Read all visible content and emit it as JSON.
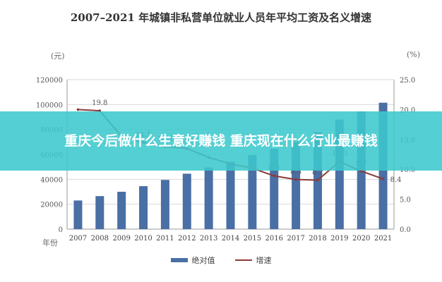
{
  "title": "2007–2021 年城镇非私营单位就业人员年平均工资及名义增速",
  "banner": "重庆今后做什么生意好赚钱 重庆现在什么行业最赚钱",
  "left_unit": "(元)",
  "right_unit": "(%)",
  "x_unit": "年份",
  "legend": {
    "bar_label": "绝对值",
    "line_label": "增速"
  },
  "colors": {
    "bar": "#4a6fa5",
    "line": "#8b3a3a",
    "banner": "#3cc8cd"
  },
  "chart_data": {
    "type": "bar",
    "title": "2007–2021 年城镇非私营单位就业人员年平均工资及名义增速",
    "categories": [
      "2007",
      "2008",
      "2009",
      "2010",
      "2011",
      "2012",
      "2013",
      "2014",
      "2015",
      "2016",
      "2017",
      "2018",
      "2019",
      "2020",
      "2021"
    ],
    "series": [
      {
        "name": "绝对值",
        "type": "bar",
        "axis": "left",
        "values": [
          23000,
          26500,
          30000,
          34500,
          39500,
          44500,
          49500,
          54000,
          59500,
          64500,
          70000,
          78000,
          88000,
          94500,
          101500
        ]
      },
      {
        "name": "增速",
        "type": "line",
        "axis": "right",
        "values": [
          20.0,
          19.8,
          15.5,
          14.5,
          13.8,
          13.5,
          12.0,
          10.9,
          10.2,
          8.9,
          8.3,
          8.2,
          11.3,
          9.7,
          8.4
        ],
        "labels": [
          "",
          "19.8",
          "",
          "14.5",
          "13.8",
          "13.5",
          "",
          "",
          "",
          "8.9",
          "8.3",
          "8.2",
          "11.3",
          "9.7",
          "8.4"
        ]
      }
    ],
    "ylim_left": [
      0,
      120000
    ],
    "yticks_left": [
      "0",
      "20000",
      "40000",
      "60000",
      "80000",
      "100000",
      "120000"
    ],
    "ylim_right": [
      0,
      25
    ],
    "yticks_right": [
      "0.0",
      "5.0",
      "10.0",
      "15.0",
      "20.0",
      "25.0"
    ],
    "grid": true,
    "legend_position": "bottom"
  }
}
